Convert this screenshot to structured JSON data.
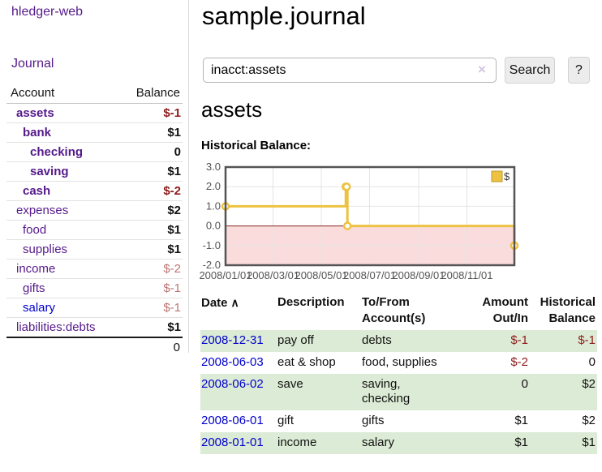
{
  "colors": {
    "link_purple": "#551a8b",
    "link_blue": "#0000cc",
    "negative_strong": "#8e1a1a",
    "negative_dim": "#be7373",
    "row_stripe_green": "#dcebd5",
    "chart_line_gold": "#edc240",
    "chart_negative_region_pink": "#fbdcdc",
    "chart_zero_line_red": "#8b2525"
  },
  "sidebar": {
    "brand": "hledger-web",
    "nav_journal": "Journal",
    "accounts_header": {
      "account": "Account",
      "balance": "Balance"
    },
    "accounts": [
      {
        "name": "assets",
        "balance": "$-1"
      },
      {
        "name": "bank",
        "balance": "$1"
      },
      {
        "name": "checking",
        "balance": "0"
      },
      {
        "name": "saving",
        "balance": "$1"
      },
      {
        "name": "cash",
        "balance": "$-2"
      },
      {
        "name": "expenses",
        "balance": "$2"
      },
      {
        "name": "food",
        "balance": "$1"
      },
      {
        "name": "supplies",
        "balance": "$1"
      },
      {
        "name": "income",
        "balance": "$-2"
      },
      {
        "name": "gifts",
        "balance": "$-1"
      },
      {
        "name": "salary",
        "balance": "$-1"
      },
      {
        "name": "liabilities:debts",
        "balance": "$1"
      }
    ],
    "total": "0"
  },
  "main": {
    "title": "sample.journal",
    "search": {
      "value": "inacct:assets",
      "clear_icon": "×",
      "search_button": "Search",
      "help_button": "?"
    },
    "account_heading": "assets",
    "section_label": "Historical Balance:"
  },
  "chart_data": {
    "type": "line",
    "title": "Historical Balance",
    "x_range": [
      "2008-01-01",
      "2008-12-31"
    ],
    "ylim": [
      -2,
      3
    ],
    "y_ticks": [
      "3.0",
      "2.0",
      "1.0",
      "0.0",
      "-1.0",
      "-2.0"
    ],
    "x_ticks": [
      {
        "label": "2008/01/01",
        "date": "2008-01-01"
      },
      {
        "label": "2008/03/01",
        "date": "2008-03-01"
      },
      {
        "label": "2008/05/01",
        "date": "2008-05-01"
      },
      {
        "label": "2008/07/01",
        "date": "2008-07-01"
      },
      {
        "label": "2008/09/01",
        "date": "2008-09-01"
      },
      {
        "label": "2008/11/01",
        "date": "2008-11-01"
      }
    ],
    "series": [
      {
        "name": "$",
        "style": "step",
        "color": "#edc240",
        "points": [
          [
            "2008-01-01",
            1
          ],
          [
            "2008-06-01",
            2
          ],
          [
            "2008-06-02",
            2
          ],
          [
            "2008-06-03",
            0
          ],
          [
            "2008-12-31",
            -1
          ]
        ]
      }
    ],
    "legend": {
      "position": "top-right",
      "label": "$"
    },
    "grid": true,
    "negative_region": true
  },
  "register": {
    "headers": {
      "date": "Date",
      "sort_icon": "∧",
      "description": "Description",
      "accounts": "To/From\nAccount(s)",
      "amount": "Amount\nOut/In",
      "balance": "Historical\nBalance"
    },
    "rows": [
      {
        "date": "2008-12-31",
        "description": "pay off",
        "accounts": "debts",
        "amount": "$-1",
        "balance": "$-1"
      },
      {
        "date": "2008-06-03",
        "description": "eat & shop",
        "accounts": "food, supplies",
        "amount": "$-2",
        "balance": "0"
      },
      {
        "date": "2008-06-02",
        "description": "save",
        "accounts": "saving,\nchecking",
        "amount": "0",
        "balance": "$2"
      },
      {
        "date": "2008-06-01",
        "description": "gift",
        "accounts": "gifts",
        "amount": "$1",
        "balance": "$2"
      },
      {
        "date": "2008-01-01",
        "description": "income",
        "accounts": "salary",
        "amount": "$1",
        "balance": "$1"
      }
    ]
  }
}
